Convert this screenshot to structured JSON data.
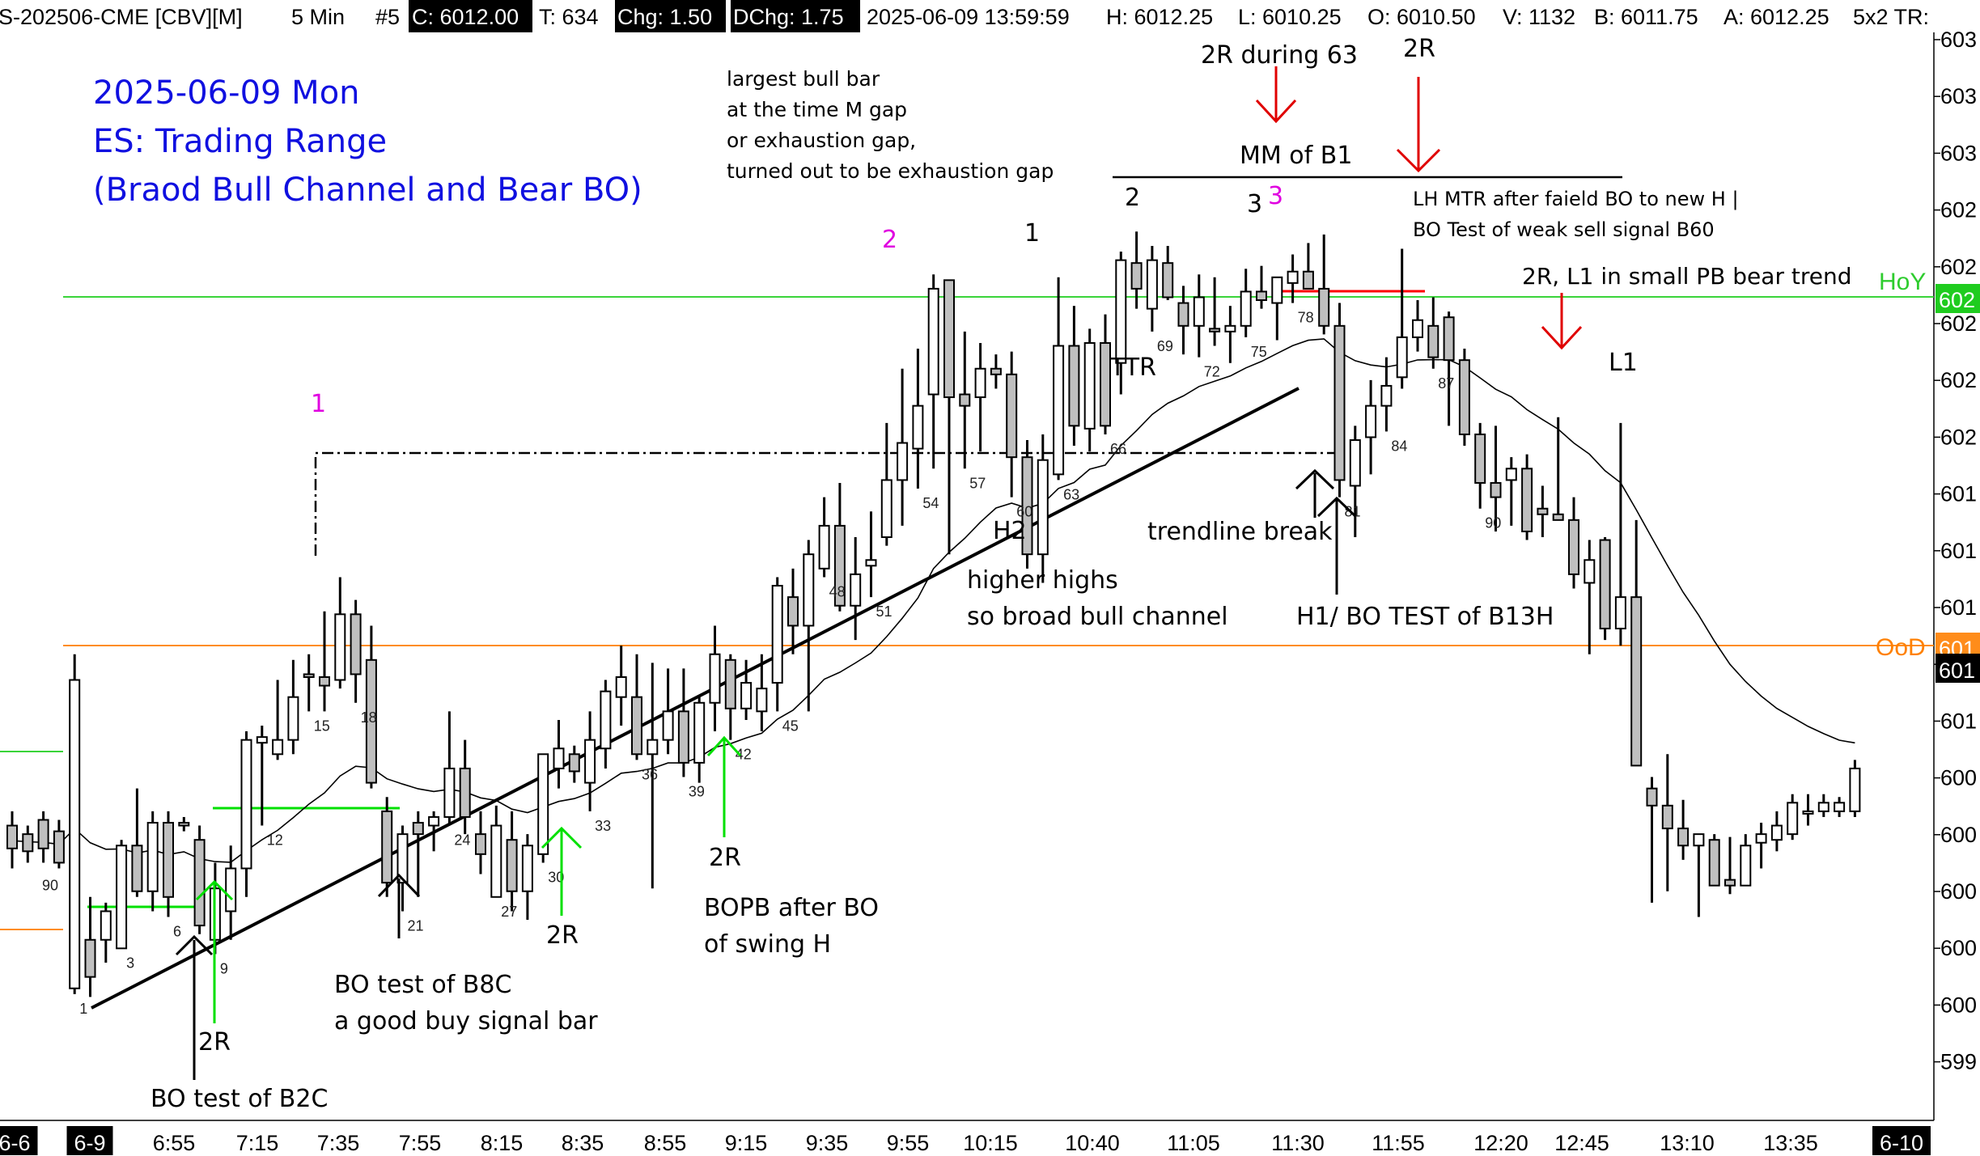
{
  "header": {
    "symbol": "S-202506-CME [CBV][M]",
    "interval": "5 Min",
    "bar_no": "#5",
    "close": "C: 6012.00",
    "ticks": "T: 634",
    "chg": "Chg: 1.50",
    "dchg": "DChg: 1.75",
    "datetime": "2025-06-09 13:59:59",
    "high": "H: 6012.25",
    "low": "L: 6010.25",
    "open": "O: 6010.50",
    "volume": "V: 1132",
    "bid": "B: 6011.75",
    "ask": "A: 6012.25",
    "extra": "5x2 TR:"
  },
  "title_block": {
    "line1": "2025-06-09 Mon",
    "line2": "ES: Trading Range",
    "line3": "(Braod Bull Channel and Bear BO)"
  },
  "colors": {
    "title_blue": "#1010e0",
    "green": "#00d000",
    "orange": "#ff8000",
    "red": "#e00000",
    "magenta": "#e000e0",
    "candle_fill": "#bfbfbf"
  },
  "chart_data": {
    "type": "candlestick",
    "x_ticks": [
      "6-6",
      "6-9",
      "6:55",
      "7:15",
      "7:35",
      "7:55",
      "8:15",
      "8:35",
      "8:55",
      "9:15",
      "9:35",
      "9:55",
      "10:15",
      "10:40",
      "11:05",
      "11:30",
      "11:55",
      "12:20",
      "12:45",
      "13:10",
      "13:35",
      "6-10"
    ],
    "y_tick_labels": [
      "603",
      "603",
      "603",
      "602",
      "602",
      "602",
      "602",
      "602",
      "601",
      "601",
      "601",
      "601",
      "601",
      "600",
      "600",
      "600",
      "600",
      "600",
      "599"
    ],
    "y_range": [
      5997.5,
      6033
    ],
    "price_labels": {
      "hoy": "HoY",
      "hoy_box": "602",
      "ood": "OoD",
      "ood_box": "601",
      "last_box": "601"
    },
    "bar_numbers": [
      "1",
      "3",
      "6",
      "9",
      "12",
      "15",
      "18",
      "21",
      "24",
      "27",
      "30",
      "33",
      "36",
      "39",
      "42",
      "45",
      "48",
      "51",
      "54",
      "57",
      "60",
      "63",
      "66",
      "69",
      "72",
      "75",
      "78",
      "81",
      "84",
      "87",
      "90"
    ],
    "prior_day_bar_label": "90",
    "candles": [
      [
        6006.5,
        6007.0,
        6005.0,
        6005.7
      ],
      [
        6006.2,
        6006.5,
        6005.2,
        6005.6
      ],
      [
        6006.7,
        6007.0,
        6005.2,
        6005.7
      ],
      [
        6006.3,
        6006.7,
        6005.0,
        6005.2
      ],
      [
        6000.8,
        6012.5,
        6000.6,
        6011.6
      ],
      [
        6002.5,
        6004.0,
        6000.5,
        6001.2
      ],
      [
        6002.5,
        6003.8,
        6001.7,
        6003.5
      ],
      [
        6002.2,
        6006.0,
        6002.2,
        6005.8
      ],
      [
        6005.8,
        6007.8,
        6004.0,
        6004.2
      ],
      [
        6004.2,
        6007.0,
        6003.5,
        6006.6
      ],
      [
        6006.6,
        6007.0,
        6003.3,
        6004.0
      ],
      [
        6006.6,
        6006.8,
        6006.3,
        6006.5
      ],
      [
        6006.0,
        6006.5,
        6002.7,
        6003.0
      ],
      [
        6002.5,
        6005.2,
        6002.0,
        6004.3
      ],
      [
        6003.5,
        6005.8,
        6002.5,
        6005.0
      ],
      [
        6005.0,
        6009.8,
        6004.0,
        6009.5
      ],
      [
        6009.4,
        6010.0,
        6006.5,
        6009.6
      ],
      [
        6009.0,
        6011.6,
        6008.8,
        6009.5
      ],
      [
        6009.5,
        6012.3,
        6009.0,
        6011.0
      ],
      [
        6011.8,
        6012.5,
        6010.5,
        6011.7
      ],
      [
        6011.7,
        6014.0,
        6010.5,
        6011.4
      ],
      [
        6011.6,
        6015.2,
        6011.3,
        6013.9
      ],
      [
        6013.9,
        6014.4,
        6010.8,
        6011.8
      ],
      [
        6012.3,
        6013.5,
        6007.8,
        6008.0
      ],
      [
        6007.0,
        6007.5,
        6004.0,
        6004.5
      ],
      [
        6004.5,
        6006.5,
        6003.5,
        6006.2
      ],
      [
        6006.6,
        6007.0,
        6004.0,
        6006.2
      ],
      [
        6006.5,
        6007.0,
        6005.6,
        6006.8
      ],
      [
        6006.8,
        6010.5,
        6006.5,
        6008.5
      ],
      [
        6008.5,
        6009.5,
        6006.2,
        6006.8
      ],
      [
        6006.2,
        6007.0,
        6004.8,
        6005.5
      ],
      [
        6004.0,
        6007.2,
        6004.0,
        6006.5
      ],
      [
        6006.0,
        6007.0,
        6003.5,
        6004.2
      ],
      [
        6004.2,
        6006.2,
        6003.2,
        6005.8
      ],
      [
        6005.5,
        6009.0,
        6005.2,
        6009.0
      ],
      [
        6008.5,
        6010.2,
        6007.8,
        6009.2
      ],
      [
        6009.0,
        6009.3,
        6008.0,
        6008.4
      ],
      [
        6008.0,
        6010.5,
        6007.0,
        6009.5
      ],
      [
        6009.2,
        6011.6,
        6008.5,
        6011.2
      ],
      [
        6011.0,
        6012.8,
        6010.0,
        6011.7
      ],
      [
        6011.0,
        6012.5,
        6008.8,
        6009.0
      ],
      [
        6009.0,
        6012.2,
        6004.3,
        6009.5
      ],
      [
        6009.5,
        6012.0,
        6009.0,
        6010.5
      ],
      [
        6010.5,
        6012.0,
        6008.2,
        6008.7
      ],
      [
        6008.7,
        6011.0,
        6008.0,
        6010.8
      ],
      [
        6010.8,
        6013.5,
        6009.8,
        6012.5
      ],
      [
        6012.3,
        6012.5,
        6009.5,
        6010.6
      ],
      [
        6010.6,
        6012.3,
        6010.2,
        6011.5
      ],
      [
        6010.5,
        6012.5,
        6009.8,
        6011.3
      ],
      [
        6011.5,
        6015.2,
        6010.5,
        6014.9
      ],
      [
        6014.5,
        6015.5,
        6012.5,
        6013.5
      ],
      [
        6013.5,
        6016.5,
        6010.5,
        6016.0
      ],
      [
        6015.5,
        6018.0,
        6015.2,
        6017.0
      ],
      [
        6017.0,
        6018.5,
        6014.0,
        6014.2
      ],
      [
        6014.2,
        6016.6,
        6013.0,
        6015.3
      ],
      [
        6015.6,
        6017.5,
        6014.5,
        6015.8
      ],
      [
        6016.6,
        6020.6,
        6016.3,
        6018.6
      ],
      [
        6018.6,
        6022.5,
        6017.0,
        6019.9
      ],
      [
        6019.7,
        6023.2,
        6018.3,
        6021.2
      ],
      [
        6021.6,
        6025.8,
        6019.0,
        6025.3
      ],
      [
        6025.6,
        6025.6,
        6016.0,
        6021.5
      ],
      [
        6021.6,
        6023.8,
        6019.0,
        6021.2
      ],
      [
        6021.5,
        6023.4,
        6019.6,
        6022.5
      ],
      [
        6022.5,
        6023.0,
        6021.8,
        6022.3
      ],
      [
        6022.3,
        6023.1,
        6018.0,
        6019.4
      ],
      [
        6019.4,
        6020.0,
        6015.5,
        6016.0
      ],
      [
        6016.0,
        6020.2,
        6015.0,
        6019.3
      ],
      [
        6018.8,
        6025.7,
        6018.6,
        6023.3
      ],
      [
        6023.3,
        6024.7,
        6019.8,
        6020.5
      ],
      [
        6020.4,
        6023.9,
        6019.6,
        6023.4
      ],
      [
        6023.4,
        6024.4,
        6020.2,
        6020.5
      ],
      [
        6022.7,
        6026.6,
        6021.6,
        6026.3
      ],
      [
        6026.2,
        6027.3,
        6024.6,
        6025.3
      ],
      [
        6024.6,
        6026.8,
        6023.8,
        6026.3
      ],
      [
        6026.2,
        6026.8,
        6024.9,
        6025.0
      ],
      [
        6024.8,
        6025.4,
        6023.0,
        6024.0
      ],
      [
        6024.0,
        6025.8,
        6022.9,
        6025.0
      ],
      [
        6023.9,
        6025.7,
        6023.3,
        6023.8
      ],
      [
        6023.8,
        6024.7,
        6022.7,
        6024.0
      ],
      [
        6024.0,
        6026.0,
        6023.6,
        6025.2
      ],
      [
        6025.2,
        6026.1,
        6024.6,
        6024.9
      ],
      [
        6024.8,
        6025.5,
        6023.5,
        6025.7
      ],
      [
        6025.5,
        6026.5,
        6024.8,
        6025.9
      ],
      [
        6025.9,
        6026.9,
        6025.4,
        6025.3
      ],
      [
        6025.3,
        6027.2,
        6023.7,
        6024.0
      ],
      [
        6024.0,
        6024.8,
        6018.0,
        6018.6
      ],
      [
        6018.4,
        6020.5,
        6016.6,
        6020.0
      ],
      [
        6020.1,
        6022.1,
        6018.8,
        6021.2
      ],
      [
        6021.2,
        6022.9,
        6020.3,
        6021.9
      ],
      [
        6022.2,
        6026.7,
        6021.8,
        6023.6
      ],
      [
        6023.6,
        6024.9,
        6023.1,
        6024.2
      ],
      [
        6024.0,
        6025.0,
        6022.5,
        6022.9
      ],
      [
        6024.3,
        6024.5,
        6020.5,
        6022.8
      ],
      [
        6022.8,
        6023.2,
        6019.8,
        6020.2
      ],
      [
        6020.2,
        6020.6,
        6017.6,
        6018.5
      ],
      [
        6018.5,
        6020.5,
        6016.8,
        6018.0
      ],
      [
        6018.6,
        6019.4,
        6017.0,
        6019.0
      ],
      [
        6019.0,
        6019.5,
        6016.5,
        6016.8
      ],
      [
        6017.6,
        6018.4,
        6016.6,
        6017.4
      ],
      [
        6017.4,
        6020.8,
        6017.3,
        6017.2
      ],
      [
        6017.2,
        6018.0,
        6014.8,
        6015.3
      ],
      [
        6015.0,
        6016.5,
        6012.5,
        6015.8
      ],
      [
        6016.5,
        6016.6,
        6013.0,
        6013.4
      ],
      [
        6013.4,
        6020.6,
        6012.8,
        6014.5
      ],
      [
        6014.5,
        6017.2,
        6008.6,
        6008.6
      ],
      [
        6007.8,
        6008.2,
        6003.8,
        6007.2
      ],
      [
        6007.2,
        6009.0,
        6004.2,
        6006.4
      ],
      [
        6006.4,
        6007.4,
        6005.3,
        6005.8
      ],
      [
        6005.8,
        6006.1,
        6003.3,
        6006.2
      ],
      [
        6006.0,
        6006.2,
        6004.4,
        6004.4
      ],
      [
        6004.6,
        6006.1,
        6004.1,
        6004.4
      ],
      [
        6004.4,
        6006.2,
        6004.5,
        6005.8
      ],
      [
        6005.9,
        6006.6,
        6005.0,
        6006.2
      ],
      [
        6006.0,
        6007.0,
        6005.6,
        6006.5
      ],
      [
        6006.2,
        6007.6,
        6006.0,
        6007.3
      ],
      [
        6007.0,
        6007.6,
        6006.5,
        6007.0
      ],
      [
        6007.0,
        6007.6,
        6006.8,
        6007.3
      ],
      [
        6007.0,
        6007.5,
        6006.8,
        6007.3
      ],
      [
        6007.0,
        6008.8,
        6006.8,
        6008.5
      ]
    ]
  },
  "annotations": {
    "bull_bar_note": [
      "largest bull bar",
      "at the time M gap",
      "or exhaustion gap,",
      "turned out to be exhaustion gap"
    ],
    "two_r_during": "2R during 63",
    "two_r_top": "2R",
    "mm_b1": "MM of B1",
    "lh_mtr": [
      "LH MTR after faield BO to new H |",
      "BO Test of weak sell signal B60"
    ],
    "two_r_l1": "2R, L1 in small PB bear trend",
    "hoy_label": "HoY",
    "ood_label": "OoD",
    "l1": "L1",
    "ttr": "TTR",
    "trendline_break": "trendline break",
    "h1_bo_test": "H1/ BO TEST of B13H",
    "h2": "H2",
    "higher_highs": [
      "higher highs",
      "so broad bull channel"
    ],
    "bopb": [
      "BOPB after BO",
      "of swing H"
    ],
    "bo_test_b8c": [
      "BO test of B8C",
      "a good buy signal bar"
    ],
    "bo_test_b2c": "BO test of B2C",
    "two_r_a": "2R",
    "two_r_b": "2R",
    "two_r_c": "2R",
    "swing_1_magenta": "1",
    "swing_2_magenta": "2",
    "swing_3_magenta": "3",
    "leg_1": "1",
    "leg_2": "2",
    "leg_3": "3"
  }
}
